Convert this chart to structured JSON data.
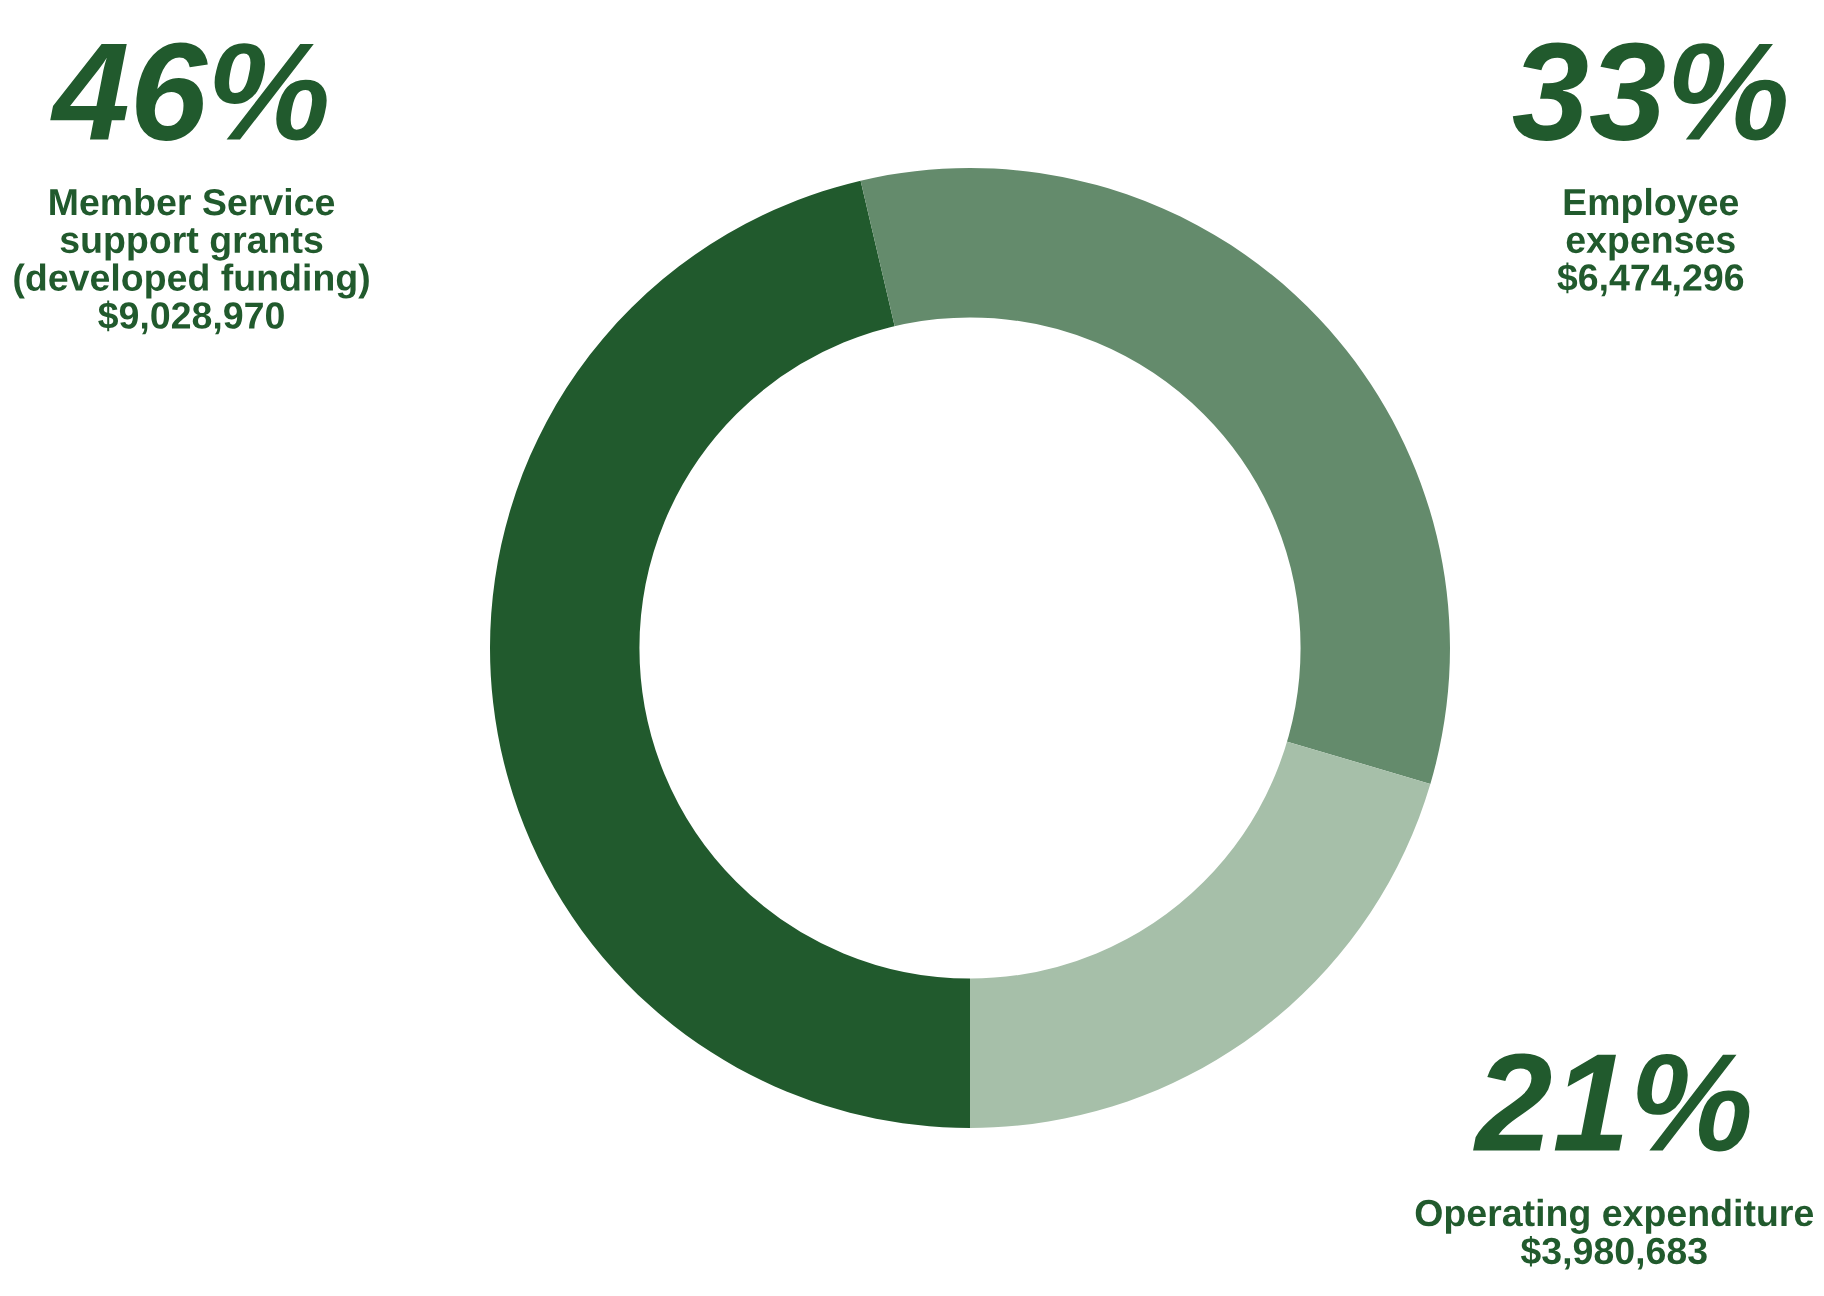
{
  "chart_data": {
    "type": "donut",
    "categories": [
      "Member Service support grants (developed funding)",
      "Employee expenses",
      "Operating expenditure"
    ],
    "values": [
      9028970,
      6474296,
      3980683
    ],
    "value_labels": [
      "$9,028,970",
      "$6,474,296",
      "$3,980,683"
    ],
    "annotations": [
      "46%",
      "33%",
      "21%"
    ],
    "colors": [
      "#215a2d",
      "#648b6c",
      "#a6bfa9"
    ],
    "legend": false
  }
}
